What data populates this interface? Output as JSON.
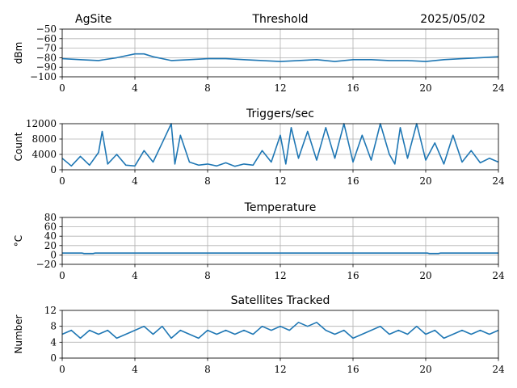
{
  "header": {
    "site": "AgSite",
    "date": "2025/05/02"
  },
  "colors": {
    "line": "#1f77b4",
    "grid": "#b0b0b0",
    "axis": "#000000"
  },
  "chart_data": [
    {
      "type": "line",
      "title": "Threshold",
      "ylabel": "dBm",
      "xlabel": "",
      "xlim": [
        0,
        24
      ],
      "ylim": [
        -100,
        -50
      ],
      "xticks": [
        "0",
        "4",
        "8",
        "12",
        "16",
        "20",
        "24"
      ],
      "yticks": [
        "−50",
        "−60",
        "−70",
        "−80",
        "−90",
        "−100"
      ],
      "ytick_values": [
        -50,
        -60,
        -70,
        -80,
        -90,
        -100
      ],
      "grid": true,
      "series": [
        {
          "x": [
            0,
            1,
            2,
            3,
            4,
            4.5,
            5,
            6,
            7,
            8,
            9,
            10,
            11,
            12,
            13,
            14,
            15,
            16,
            17,
            18,
            19,
            20,
            21,
            22,
            23,
            24
          ],
          "y": [
            -81,
            -82,
            -83,
            -80,
            -76,
            -76,
            -79,
            -83,
            -82,
            -81,
            -81,
            -82,
            -83,
            -84,
            -83,
            -82,
            -84,
            -82,
            -82,
            -83,
            -83,
            -84,
            -82,
            -81,
            -80,
            -79
          ]
        }
      ]
    },
    {
      "type": "line",
      "title": "Triggers/sec",
      "ylabel": "Count",
      "xlabel": "",
      "xlim": [
        0,
        24
      ],
      "ylim": [
        0,
        12000
      ],
      "xticks": [
        "0",
        "4",
        "8",
        "12",
        "16",
        "20",
        "24"
      ],
      "yticks": [
        "0",
        "4000",
        "8000",
        "12000"
      ],
      "ytick_values": [
        0,
        4000,
        8000,
        12000
      ],
      "grid": true,
      "series": [
        {
          "x": [
            0,
            0.5,
            1,
            1.5,
            2,
            2.2,
            2.5,
            3,
            3.5,
            4,
            4.5,
            5,
            5.5,
            6,
            6.2,
            6.5,
            7,
            7.5,
            8,
            8.5,
            9,
            9.5,
            10,
            10.5,
            11,
            11.5,
            12,
            12.3,
            12.6,
            13,
            13.5,
            14,
            14.5,
            15,
            15.5,
            16,
            16.5,
            17,
            17.5,
            18,
            18.3,
            18.6,
            19,
            19.5,
            20,
            20.5,
            21,
            21.5,
            22,
            22.5,
            23,
            23.5,
            24
          ],
          "y": [
            3000,
            1000,
            3500,
            1200,
            4500,
            10000,
            1500,
            4000,
            1200,
            1000,
            5000,
            2000,
            7000,
            12000,
            1500,
            9000,
            2000,
            1200,
            1500,
            1000,
            1800,
            900,
            1500,
            1200,
            5000,
            2000,
            9000,
            1500,
            11000,
            3000,
            10000,
            2500,
            11000,
            3000,
            12000,
            2000,
            9000,
            2500,
            12000,
            4000,
            1500,
            11000,
            3000,
            12000,
            2500,
            7000,
            1500,
            9000,
            2000,
            5000,
            1800,
            3000,
            2000
          ]
        }
      ]
    },
    {
      "type": "line",
      "title": "Temperature",
      "ylabel": "°C",
      "xlabel": "",
      "xlim": [
        0,
        24
      ],
      "ylim": [
        -20,
        80
      ],
      "xticks": [
        "0",
        "4",
        "8",
        "12",
        "16",
        "20",
        "24"
      ],
      "yticks": [
        "80",
        "60",
        "40",
        "20",
        "0",
        "−20"
      ],
      "ytick_values": [
        80,
        60,
        40,
        20,
        0,
        -20
      ],
      "grid": true,
      "series": [
        {
          "x": [
            0,
            1.1,
            1.2,
            1.7,
            1.8,
            20.1,
            20.2,
            20.7,
            20.8,
            24
          ],
          "y": [
            4,
            4,
            3,
            3,
            4,
            4,
            3,
            3,
            4,
            4
          ]
        }
      ]
    },
    {
      "type": "line",
      "title": "Satellites Tracked",
      "ylabel": "Number",
      "xlabel": "",
      "xlim": [
        0,
        24
      ],
      "ylim": [
        0,
        12
      ],
      "xticks": [
        "0",
        "4",
        "8",
        "12",
        "16",
        "20",
        "24"
      ],
      "yticks": [
        "0",
        "4",
        "8",
        "12"
      ],
      "ytick_values": [
        0,
        4,
        8,
        12
      ],
      "grid": true,
      "series": [
        {
          "x": [
            0,
            0.5,
            1,
            1.5,
            2,
            2.5,
            3,
            3.5,
            4,
            4.5,
            5,
            5.5,
            6,
            6.5,
            7,
            7.5,
            8,
            8.5,
            9,
            9.5,
            10,
            10.5,
            11,
            11.5,
            12,
            12.5,
            13,
            13.5,
            14,
            14.5,
            15,
            15.5,
            16,
            16.5,
            17,
            17.5,
            18,
            18.5,
            19,
            19.5,
            20,
            20.5,
            21,
            21.5,
            22,
            22.5,
            23,
            23.5,
            24
          ],
          "y": [
            6,
            7,
            5,
            7,
            6,
            7,
            5,
            6,
            7,
            8,
            6,
            8,
            5,
            7,
            6,
            5,
            7,
            6,
            7,
            6,
            7,
            6,
            8,
            7,
            8,
            7,
            9,
            8,
            9,
            7,
            6,
            7,
            5,
            6,
            7,
            8,
            6,
            7,
            6,
            8,
            6,
            7,
            5,
            6,
            7,
            6,
            7,
            6,
            7
          ]
        }
      ]
    }
  ]
}
